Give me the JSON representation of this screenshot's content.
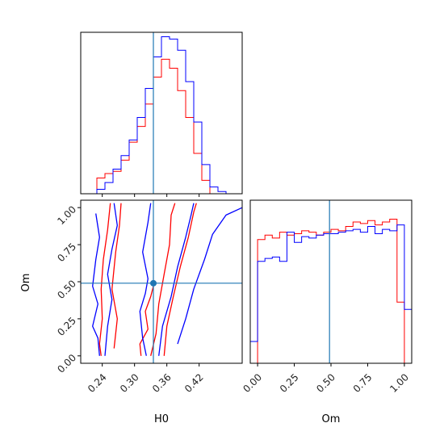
{
  "chart_data": {
    "type": "corner",
    "parameters": [
      "H0",
      "Om"
    ],
    "truth": {
      "H0": 0.335,
      "Om": 0.49
    },
    "colors": {
      "red": "#ff0000",
      "blue": "#0000ff",
      "truth": "#1f77b4"
    },
    "h0_axis": {
      "range": [
        0.2,
        0.5
      ],
      "ticks": [
        0.24,
        0.3,
        0.36,
        0.42
      ],
      "tick_labels": [
        "0.24",
        "0.30",
        "0.36",
        "0.42"
      ],
      "label": "H0"
    },
    "om_axis": {
      "range": [
        -0.05,
        1.05
      ],
      "ticks": [
        0.0,
        0.25,
        0.5,
        0.75,
        1.0
      ],
      "tick_labels": [
        "0.00",
        "0.25",
        "0.50",
        "0.75",
        "1.00"
      ],
      "label": "Om"
    },
    "hist_h0": {
      "bin_edges": [
        0.2,
        0.215,
        0.23,
        0.245,
        0.26,
        0.275,
        0.29,
        0.305,
        0.32,
        0.335,
        0.35,
        0.365,
        0.38,
        0.395,
        0.41,
        0.425,
        0.44,
        0.455,
        0.47,
        0.485,
        0.5
      ],
      "red": [
        0,
        0,
        0.07,
        0.09,
        0.1,
        0.15,
        0.23,
        0.3,
        0.4,
        0.52,
        0.6,
        0.56,
        0.46,
        0.34,
        0.18,
        0.06,
        0,
        0,
        0,
        0
      ],
      "blue": [
        0,
        0,
        0.02,
        0.05,
        0.11,
        0.17,
        0.24,
        0.34,
        0.47,
        0.61,
        0.7,
        0.69,
        0.64,
        0.5,
        0.32,
        0.13,
        0.03,
        0.01,
        0,
        0
      ]
    },
    "hist_om": {
      "bin_edges": [
        -0.05,
        0.0,
        0.05,
        0.1,
        0.15,
        0.2,
        0.25,
        0.3,
        0.35,
        0.4,
        0.45,
        0.5,
        0.55,
        0.6,
        0.65,
        0.7,
        0.75,
        0.8,
        0.85,
        0.9,
        0.95,
        1.0,
        1.05
      ],
      "red": [
        0,
        0.85,
        0.88,
        0.86,
        0.9,
        0.88,
        0.89,
        0.91,
        0.9,
        0.88,
        0.9,
        0.92,
        0.91,
        0.94,
        0.97,
        0.96,
        0.98,
        0.95,
        0.97,
        0.99,
        0.42,
        0
      ],
      "blue": [
        0.15,
        0.7,
        0.72,
        0.73,
        0.7,
        0.9,
        0.83,
        0.87,
        0.86,
        0.88,
        0.89,
        0.89,
        0.9,
        0.91,
        0.92,
        0.9,
        0.94,
        0.89,
        0.92,
        0.91,
        0.95,
        0.37
      ]
    },
    "contours_2d": [
      {
        "color": "red",
        "points": [
          [
            0.255,
            1.03
          ],
          [
            0.25,
            0.85
          ],
          [
            0.242,
            0.65
          ],
          [
            0.238,
            0.45
          ],
          [
            0.24,
            0.25
          ],
          [
            0.235,
            0.08
          ],
          [
            0.238,
            0.0
          ]
        ]
      },
      {
        "color": "red",
        "points": [
          [
            0.275,
            1.03
          ],
          [
            0.272,
            0.88
          ],
          [
            0.265,
            0.7
          ],
          [
            0.258,
            0.45
          ],
          [
            0.268,
            0.25
          ],
          [
            0.262,
            0.05
          ]
        ]
      },
      {
        "color": "red",
        "points": [
          [
            0.312,
            0.0
          ],
          [
            0.31,
            0.08
          ],
          [
            0.325,
            0.18
          ],
          [
            0.32,
            0.3
          ],
          [
            0.33,
            0.4
          ],
          [
            0.335,
            0.47
          ]
        ]
      },
      {
        "color": "red",
        "points": [
          [
            0.33,
            0.0
          ],
          [
            0.34,
            0.15
          ],
          [
            0.345,
            0.35
          ],
          [
            0.355,
            0.55
          ],
          [
            0.365,
            0.75
          ],
          [
            0.368,
            0.95
          ],
          [
            0.375,
            1.03
          ]
        ]
      },
      {
        "color": "red",
        "points": [
          [
            0.355,
            0.0
          ],
          [
            0.36,
            0.2
          ],
          [
            0.372,
            0.4
          ],
          [
            0.385,
            0.6
          ],
          [
            0.4,
            0.8
          ],
          [
            0.41,
            0.97
          ],
          [
            0.415,
            1.03
          ]
        ]
      },
      {
        "color": "blue",
        "points": [
          [
            0.228,
            0.96
          ],
          [
            0.235,
            0.8
          ],
          [
            0.228,
            0.65
          ],
          [
            0.222,
            0.47
          ],
          [
            0.232,
            0.35
          ],
          [
            0.222,
            0.2
          ],
          [
            0.232,
            0.12
          ],
          [
            0.235,
            0.0
          ]
        ]
      },
      {
        "color": "blue",
        "points": [
          [
            0.262,
            1.03
          ],
          [
            0.268,
            0.88
          ],
          [
            0.258,
            0.72
          ],
          [
            0.25,
            0.55
          ],
          [
            0.258,
            0.38
          ],
          [
            0.25,
            0.2
          ],
          [
            0.245,
            0.0
          ]
        ]
      },
      {
        "color": "blue",
        "points": [
          [
            0.322,
            0.0
          ],
          [
            0.315,
            0.12
          ],
          [
            0.31,
            0.3
          ],
          [
            0.32,
            0.42
          ],
          [
            0.325,
            0.52
          ],
          [
            0.315,
            0.7
          ],
          [
            0.325,
            0.9
          ],
          [
            0.33,
            1.03
          ]
        ]
      },
      {
        "color": "blue",
        "points": [
          [
            0.345,
            0.0
          ],
          [
            0.352,
            0.2
          ],
          [
            0.368,
            0.4
          ],
          [
            0.38,
            0.6
          ],
          [
            0.395,
            0.8
          ],
          [
            0.405,
            0.95
          ],
          [
            0.41,
            1.03
          ]
        ]
      },
      {
        "color": "blue",
        "points": [
          [
            0.38,
            0.08
          ],
          [
            0.395,
            0.25
          ],
          [
            0.41,
            0.45
          ],
          [
            0.43,
            0.65
          ],
          [
            0.445,
            0.82
          ],
          [
            0.47,
            0.95
          ],
          [
            0.5,
            1.0
          ]
        ]
      }
    ]
  }
}
